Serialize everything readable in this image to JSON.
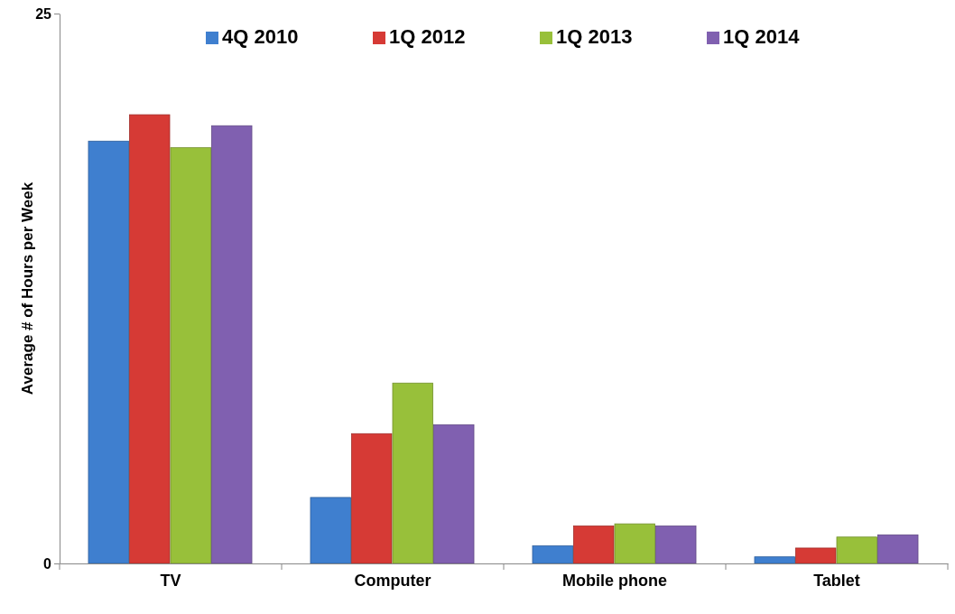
{
  "chart_data": {
    "type": "bar",
    "ylabel": "Average # of Hours per Week",
    "categories": [
      "TV",
      "Computer",
      "Mobile phone",
      "Tablet"
    ],
    "series": [
      {
        "name": "4Q 2010",
        "color": "#3f7fcf",
        "values": [
          19.2,
          3.0,
          0.8,
          0.3
        ]
      },
      {
        "name": "1Q 2012",
        "color": "#d63a35",
        "values": [
          20.4,
          5.9,
          1.7,
          0.7
        ]
      },
      {
        "name": "1Q 2013",
        "color": "#98c03a",
        "values": [
          18.9,
          8.2,
          1.8,
          1.2
        ]
      },
      {
        "name": "1Q 2014",
        "color": "#8060b0",
        "values": [
          19.9,
          6.3,
          1.7,
          1.3
        ]
      }
    ],
    "ylim": [
      0,
      25
    ],
    "yticks": [
      0,
      25
    ],
    "grid": false,
    "legend": "top"
  }
}
